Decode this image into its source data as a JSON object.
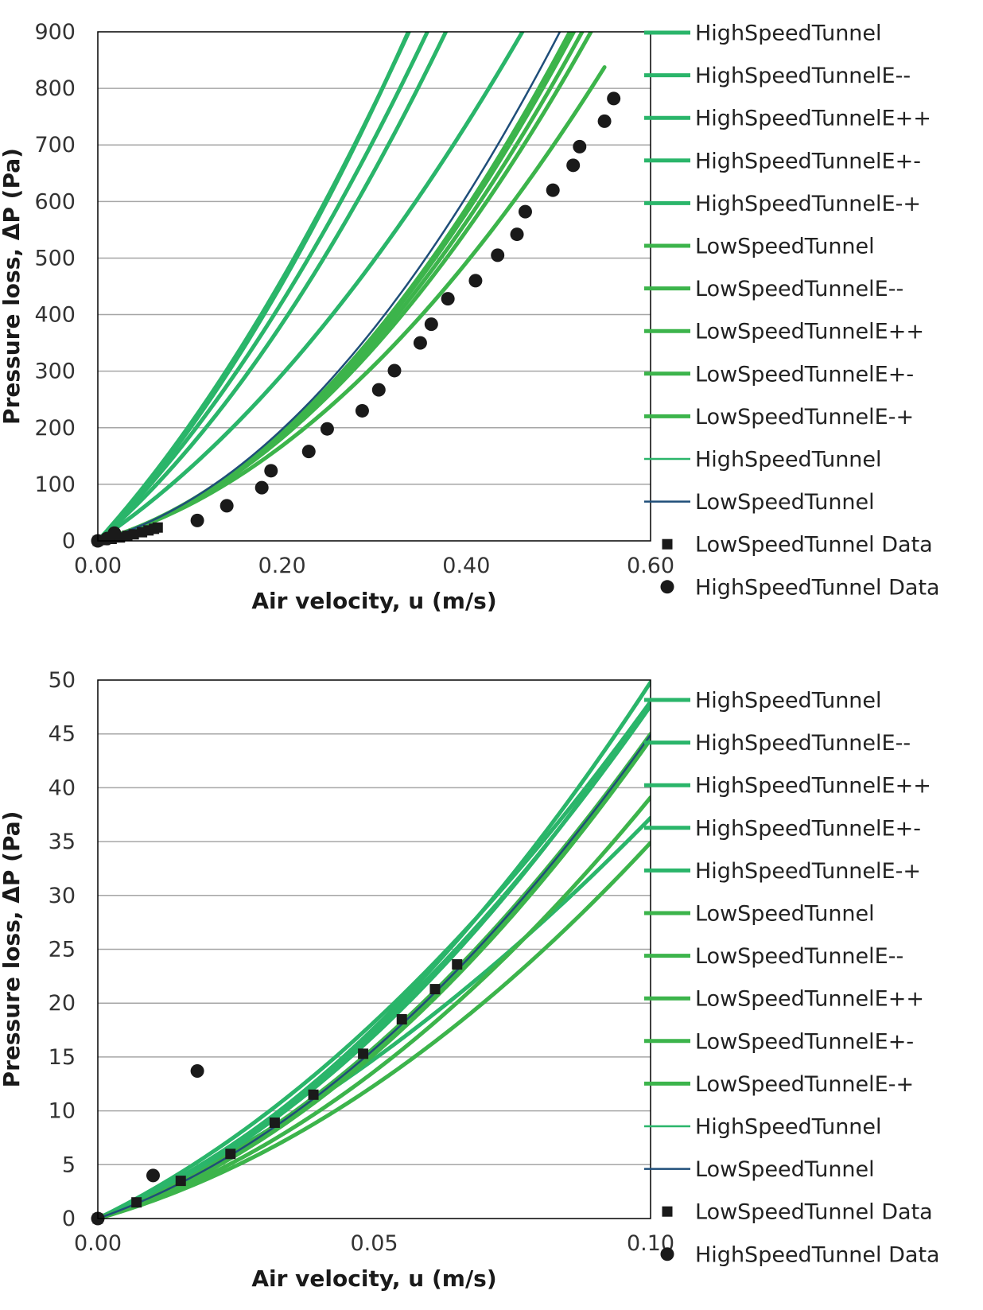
{
  "colors": {
    "model_green": "#2ab56a",
    "model_green_low": "#3cb44b",
    "model_navy": "#1f4e79",
    "data_marker": "#1a1a1a",
    "grid": "#a6a6a6",
    "frame": "#000000"
  },
  "legend_items": [
    {
      "label": "HighSpeedTunnel",
      "style": "line-thick",
      "color": "#2ab56a"
    },
    {
      "label": "HighSpeedTunnelE--",
      "style": "line-thick",
      "color": "#2ab56a"
    },
    {
      "label": "HighSpeedTunnelE++",
      "style": "line-thick",
      "color": "#2ab56a"
    },
    {
      "label": "HighSpeedTunnelE+-",
      "style": "line-thick",
      "color": "#2ab56a"
    },
    {
      "label": "HighSpeedTunnelE-+",
      "style": "line-thick",
      "color": "#2ab56a"
    },
    {
      "label": "LowSpeedTunnel",
      "style": "line-thick",
      "color": "#3cb44b"
    },
    {
      "label": "LowSpeedTunnelE--",
      "style": "line-thick",
      "color": "#3cb44b"
    },
    {
      "label": "LowSpeedTunnelE++",
      "style": "line-thick",
      "color": "#3cb44b"
    },
    {
      "label": "LowSpeedTunnelE+-",
      "style": "line-thick",
      "color": "#3cb44b"
    },
    {
      "label": "LowSpeedTunnelE-+",
      "style": "line-thick",
      "color": "#3cb44b"
    },
    {
      "label": "HighSpeedTunnel",
      "style": "line-thin",
      "color": "#2ab56a"
    },
    {
      "label": "LowSpeedTunnel",
      "style": "line-thin",
      "color": "#1f4e79"
    },
    {
      "label": "LowSpeedTunnel Data",
      "style": "square",
      "color": "#1a1a1a"
    },
    {
      "label": "HighSpeedTunnel Data",
      "style": "circle",
      "color": "#1a1a1a"
    }
  ],
  "chart_data": [
    {
      "type": "scatter",
      "xlabel": "Air velocity, u (m/s)",
      "ylabel": "Pressure loss, ΔP (Pa)",
      "xlim": [
        0,
        0.6
      ],
      "ylim": [
        0,
        900
      ],
      "xticks": [
        0,
        0.2,
        0.4,
        0.6
      ],
      "xtick_labels": [
        "0.00",
        "0.20",
        "0.40",
        "0.60"
      ],
      "yticks": [
        0,
        100,
        200,
        300,
        400,
        500,
        600,
        700,
        800,
        900
      ],
      "ytick_labels": [
        "0",
        "100",
        "200",
        "300",
        "400",
        "500",
        "600",
        "700",
        "800",
        "900"
      ],
      "grid": "horizontal",
      "legend": "right",
      "curves": [
        {
          "a": 1700,
          "b": 2880,
          "x_max": 0.55,
          "color": "#2ab56a",
          "width": 5
        },
        {
          "a": 1100,
          "b": 1850,
          "x_max": 0.55,
          "color": "#2ab56a",
          "width": 5
        },
        {
          "a": 1800,
          "b": 2560,
          "x_max": 0.55,
          "color": "#2ab56a",
          "width": 5
        },
        {
          "a": 1400,
          "b": 2600,
          "x_max": 0.55,
          "color": "#2ab56a",
          "width": 5
        },
        {
          "a": 1600,
          "b": 2560,
          "x_max": 0.55,
          "color": "#2ab56a",
          "width": 5
        },
        {
          "a": 450,
          "b": 2550,
          "x_max": 0.55,
          "color": "#3cb44b",
          "width": 5
        },
        {
          "a": 450,
          "b": 2300,
          "x_max": 0.55,
          "color": "#3cb44b",
          "width": 5
        },
        {
          "a": 450,
          "b": 2500,
          "x_max": 0.55,
          "color": "#3cb44b",
          "width": 5
        },
        {
          "a": 450,
          "b": 2400,
          "x_max": 0.55,
          "color": "#3cb44b",
          "width": 5
        },
        {
          "a": 450,
          "b": 1950,
          "x_max": 0.55,
          "color": "#3cb44b",
          "width": 5
        },
        {
          "a": 1700,
          "b": 2880,
          "x_max": 0.55,
          "color": "#2ab56a",
          "width": 2
        },
        {
          "a": 450,
          "b": 2680,
          "x_max": 0.55,
          "color": "#1f4e79",
          "width": 2.5
        }
      ],
      "series": [
        {
          "name": "LowSpeedTunnel Data",
          "marker": "square",
          "points": [
            [
              0.0,
              0.0
            ],
            [
              0.007,
              1.5
            ],
            [
              0.015,
              3.5
            ],
            [
              0.024,
              6.0
            ],
            [
              0.032,
              8.9
            ],
            [
              0.039,
              11.5
            ],
            [
              0.048,
              15.3
            ],
            [
              0.055,
              18.5
            ],
            [
              0.061,
              21.3
            ],
            [
              0.065,
              23.6
            ]
          ]
        },
        {
          "name": "HighSpeedTunnel Data",
          "marker": "circle",
          "points": [
            [
              0.0,
              0.0
            ],
            [
              0.01,
              4.0
            ],
            [
              0.018,
              13.7
            ],
            [
              0.108,
              36
            ],
            [
              0.14,
              62
            ],
            [
              0.178,
              94
            ],
            [
              0.188,
              124
            ],
            [
              0.229,
              158
            ],
            [
              0.249,
              198
            ],
            [
              0.287,
              230
            ],
            [
              0.305,
              267
            ],
            [
              0.322,
              301
            ],
            [
              0.35,
              350
            ],
            [
              0.362,
              383
            ],
            [
              0.38,
              428
            ],
            [
              0.41,
              460
            ],
            [
              0.434,
              505
            ],
            [
              0.455,
              542
            ],
            [
              0.464,
              582
            ],
            [
              0.494,
              620
            ],
            [
              0.516,
              664
            ],
            [
              0.523,
              697
            ],
            [
              0.55,
              742
            ],
            [
              0.56,
              782
            ]
          ]
        }
      ]
    },
    {
      "type": "scatter",
      "xlabel": "Air velocity, u (m/s)",
      "ylabel": "Pressure loss, ΔP (Pa)",
      "xlim": [
        0,
        0.1
      ],
      "ylim": [
        0,
        50
      ],
      "xticks": [
        0,
        0.05,
        0.1
      ],
      "xtick_labels": [
        "0.00",
        "0.05",
        "0.10"
      ],
      "yticks": [
        0,
        5,
        10,
        15,
        20,
        25,
        30,
        35,
        40,
        45,
        50
      ],
      "ytick_labels": [
        "0",
        "5",
        "10",
        "15",
        "20",
        "25",
        "30",
        "35",
        "40",
        "45",
        "50"
      ],
      "grid": "horizontal",
      "legend": "right",
      "curves": [
        {
          "a": 210,
          "b": 2880,
          "x_max": 0.1,
          "color": "#2ab56a",
          "width": 5
        },
        {
          "a": 200,
          "b": 2800,
          "x_max": 0.1,
          "color": "#2ab56a",
          "width": 5
        },
        {
          "a": 250,
          "b": 2300,
          "x_max": 0.1,
          "color": "#2ab56a",
          "width": 5
        },
        {
          "a": 220,
          "b": 1520,
          "x_max": 0.1,
          "color": "#2ab56a",
          "width": 5
        },
        {
          "a": 220,
          "b": 2560,
          "x_max": 0.1,
          "color": "#2ab56a",
          "width": 5
        },
        {
          "a": 180,
          "b": 2690,
          "x_max": 0.1,
          "color": "#3cb44b",
          "width": 5
        },
        {
          "a": 185,
          "b": 2650,
          "x_max": 0.1,
          "color": "#3cb44b",
          "width": 5
        },
        {
          "a": 155,
          "b": 2360,
          "x_max": 0.1,
          "color": "#3cb44b",
          "width": 5
        },
        {
          "a": 165,
          "b": 2800,
          "x_max": 0.1,
          "color": "#3cb44b",
          "width": 5
        },
        {
          "a": 145,
          "b": 2040,
          "x_max": 0.1,
          "color": "#3cb44b",
          "width": 5
        },
        {
          "a": 210,
          "b": 2880,
          "x_max": 0.1,
          "color": "#2ab56a",
          "width": 2
        },
        {
          "a": 180,
          "b": 2690,
          "x_max": 0.1,
          "color": "#1f4e79",
          "width": 2.5
        }
      ],
      "series": [
        {
          "name": "LowSpeedTunnel Data",
          "marker": "square",
          "points": [
            [
              0.0,
              0.0
            ],
            [
              0.007,
              1.5
            ],
            [
              0.015,
              3.5
            ],
            [
              0.024,
              6.0
            ],
            [
              0.032,
              8.9
            ],
            [
              0.039,
              11.5
            ],
            [
              0.048,
              15.3
            ],
            [
              0.055,
              18.5
            ],
            [
              0.061,
              21.3
            ],
            [
              0.065,
              23.6
            ]
          ]
        },
        {
          "name": "HighSpeedTunnel Data",
          "marker": "circle",
          "points": [
            [
              0.0,
              0.0
            ],
            [
              0.01,
              4.0
            ],
            [
              0.018,
              13.7
            ]
          ]
        }
      ]
    }
  ]
}
